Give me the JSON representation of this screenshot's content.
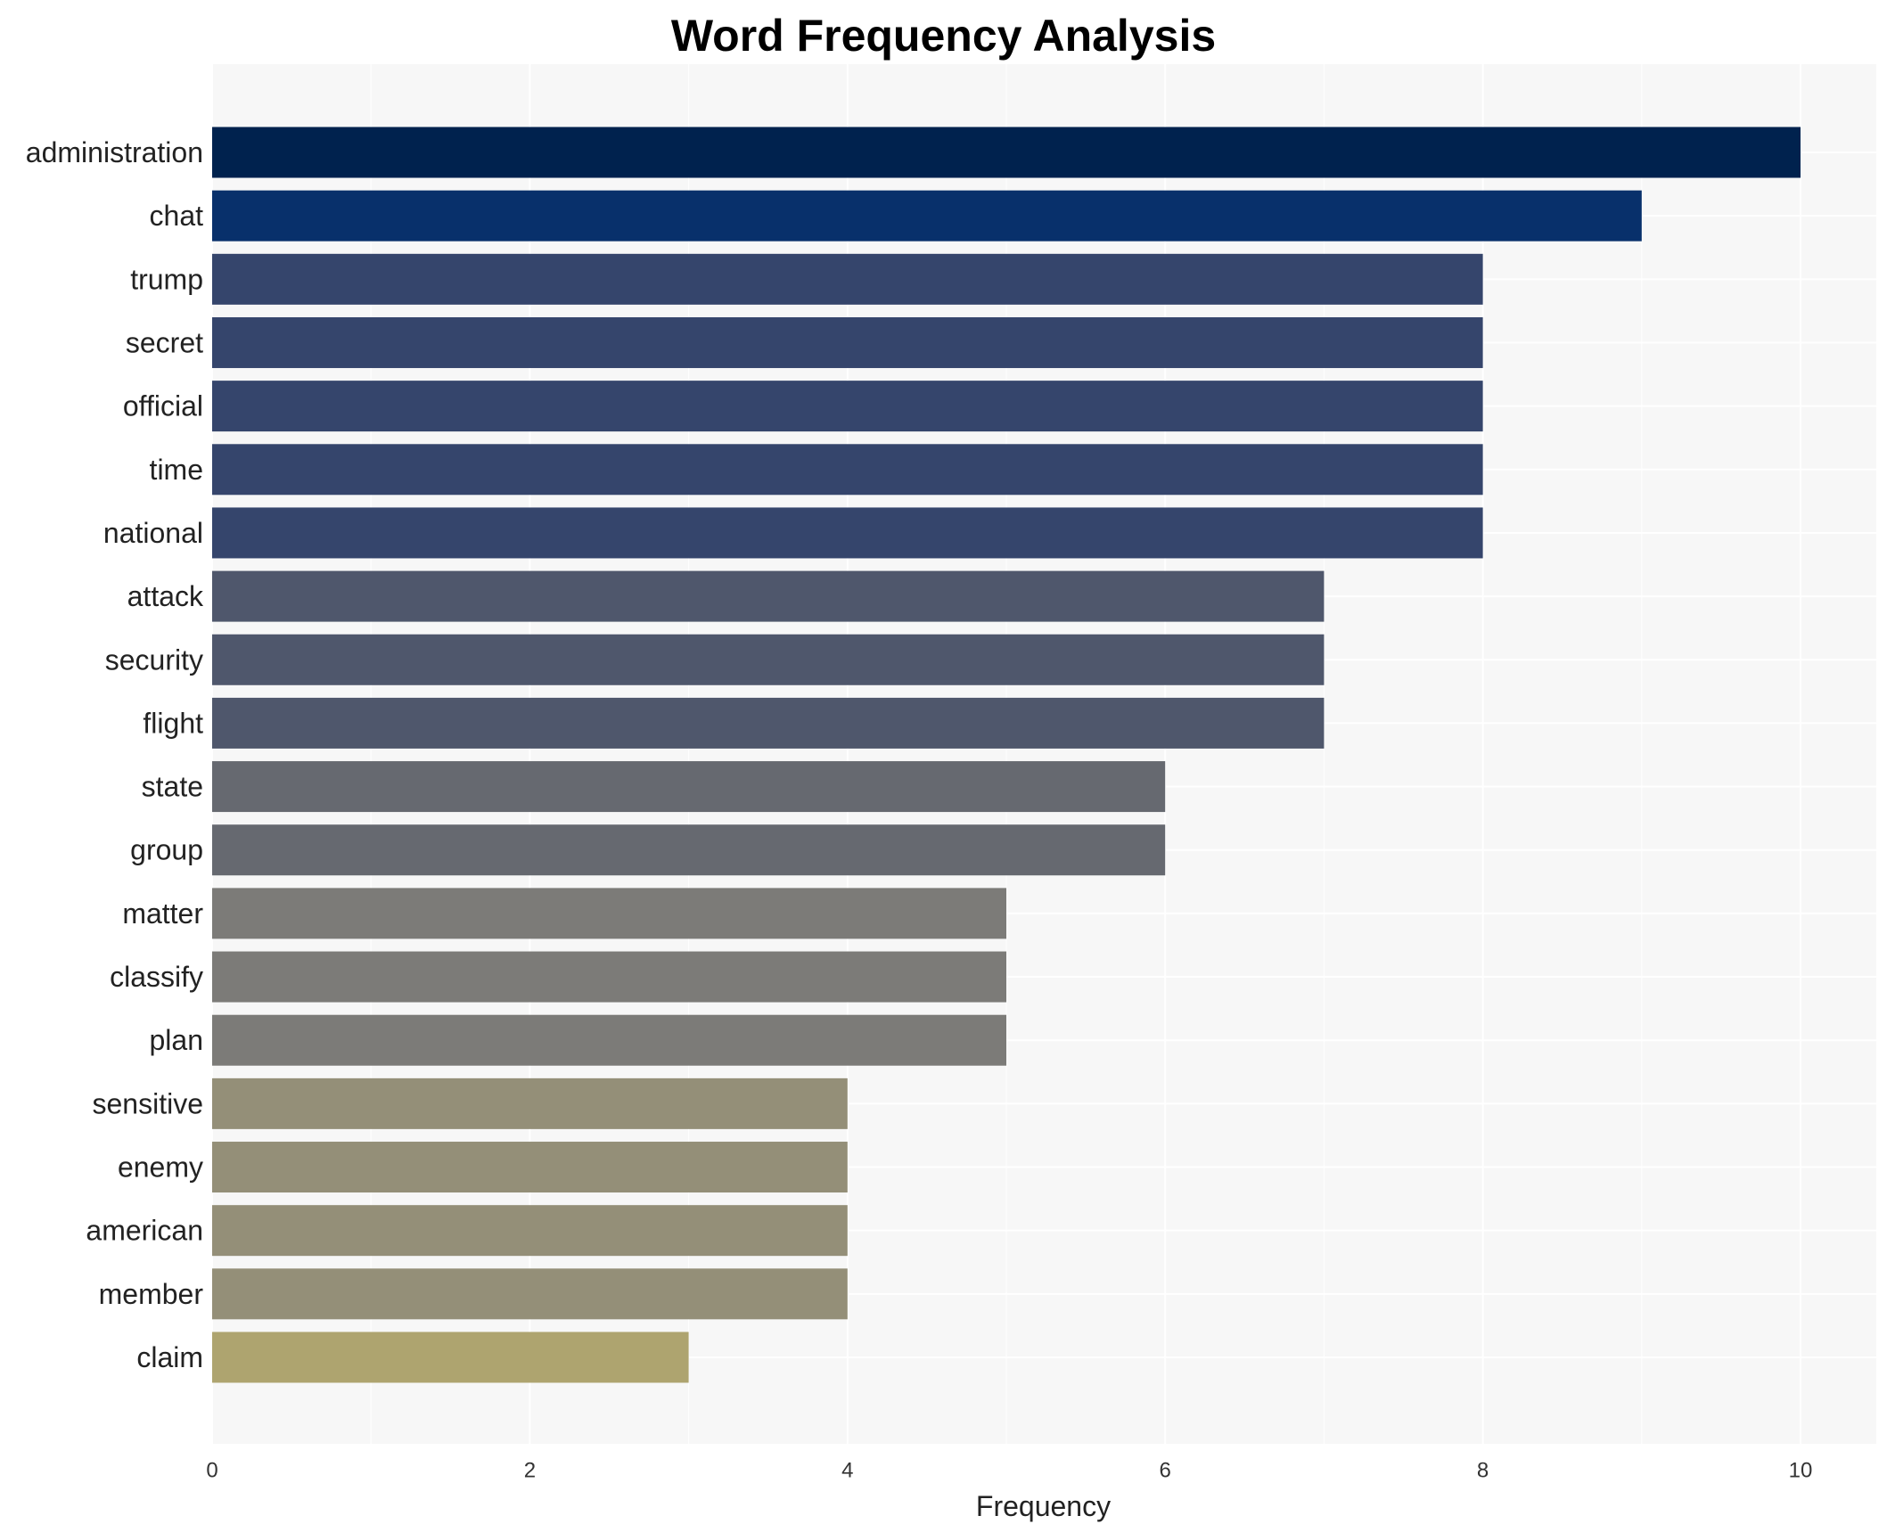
{
  "chart_data": {
    "type": "bar",
    "orientation": "horizontal",
    "title": "Word Frequency Analysis",
    "xlabel": "Frequency",
    "ylabel": "",
    "xlim": [
      0,
      10.5
    ],
    "xticks": [
      0,
      2,
      4,
      6,
      8,
      10
    ],
    "grid": true,
    "categories": [
      "administration",
      "chat",
      "trump",
      "secret",
      "official",
      "time",
      "national",
      "attack",
      "security",
      "flight",
      "state",
      "group",
      "matter",
      "classify",
      "plan",
      "sensitive",
      "enemy",
      "american",
      "member",
      "claim"
    ],
    "values": [
      10,
      9,
      8,
      8,
      8,
      8,
      8,
      7,
      7,
      7,
      6,
      6,
      5,
      5,
      5,
      4,
      4,
      4,
      4,
      3
    ],
    "value_colors": {
      "10": "#00224e",
      "9": "#08306b",
      "8": "#35456c",
      "7": "#4f576c",
      "6": "#666970",
      "5": "#7c7b78",
      "4": "#948f78",
      "3": "#aea46f"
    },
    "plot_background": "#f7f7f7",
    "grid_color": "#ffffff"
  }
}
